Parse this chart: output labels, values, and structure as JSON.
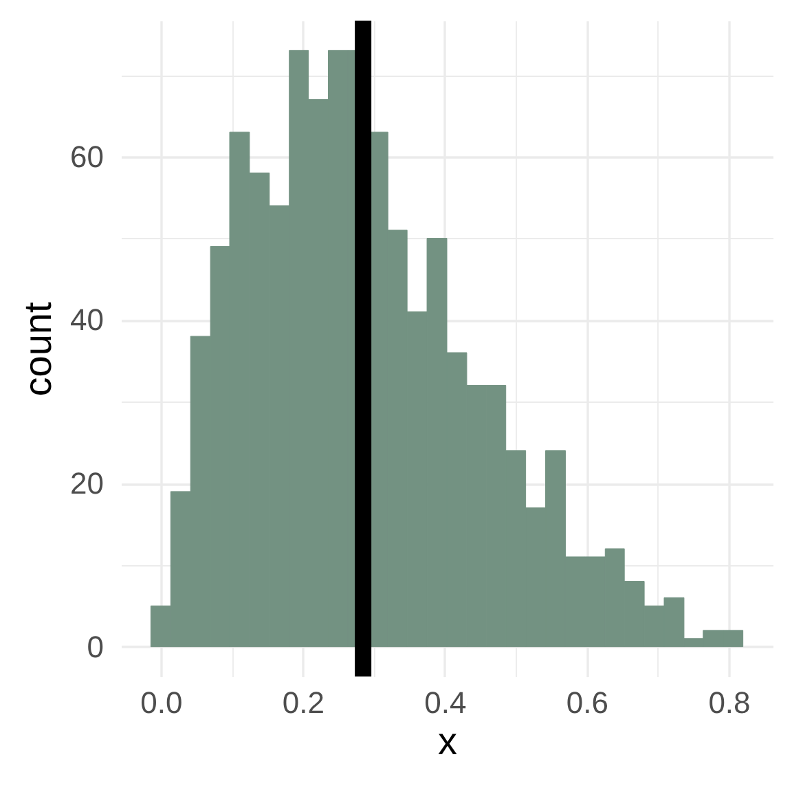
{
  "chart_data": {
    "type": "histogram",
    "xlabel": "x",
    "ylabel": "count",
    "color": "#739282",
    "bins": [
      -0.014,
      0.014,
      0.042,
      0.07,
      0.097,
      0.125,
      0.153,
      0.181,
      0.208,
      0.236,
      0.264,
      0.292,
      0.32,
      0.347,
      0.375,
      0.403,
      0.431,
      0.459,
      0.486,
      0.514,
      0.542,
      0.57,
      0.598,
      0.626,
      0.653,
      0.681,
      0.709,
      0.737,
      0.764,
      0.792,
      0.82
    ],
    "values": [
      5,
      19,
      38,
      49,
      63,
      58,
      54,
      73,
      67,
      73,
      73,
      63,
      51,
      41,
      50,
      36,
      32,
      32,
      24,
      17,
      24,
      11,
      11,
      12,
      8,
      5,
      6,
      1,
      2,
      2
    ],
    "xlim": [
      -0.056,
      0.862
    ],
    "ylim": [
      -3.65,
      76.65
    ],
    "xticks": [
      {
        "value": 0,
        "label": "0.0"
      },
      {
        "value": 0.1,
        "label": null
      },
      0.2,
      {
        "value": 0.3,
        "label": null
      },
      0.4,
      {
        "value": 0.5,
        "label": null
      },
      0.6,
      {
        "value": 0.7,
        "label": null
      },
      0.8
    ],
    "yticks": [
      0,
      {
        "value": 10,
        "label": null
      },
      20,
      {
        "value": 30,
        "label": null
      },
      40,
      {
        "value": 50,
        "label": null
      },
      60,
      {
        "value": 70,
        "label": null
      }
    ],
    "grid": true,
    "ref_lines": [
      {
        "axis": "x",
        "value": 0.285,
        "color": "#000000"
      }
    ]
  }
}
